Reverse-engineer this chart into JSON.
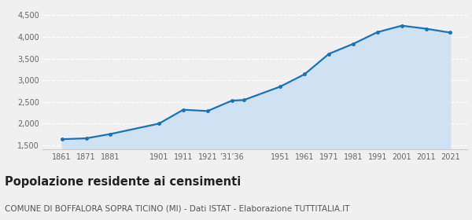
{
  "years": [
    1861,
    1871,
    1881,
    1901,
    1911,
    1921,
    1931,
    1936,
    1951,
    1961,
    1971,
    1981,
    1991,
    2001,
    2011,
    2021
  ],
  "population": [
    1640,
    1660,
    1760,
    2000,
    2320,
    2290,
    2530,
    2545,
    2855,
    3140,
    3610,
    3840,
    4110,
    4260,
    4190,
    4100
  ],
  "x_tick_positions": [
    1861,
    1871,
    1881,
    1901,
    1911,
    1921,
    1931,
    1951,
    1961,
    1971,
    1981,
    1991,
    2001,
    2011,
    2021
  ],
  "x_tick_labels": [
    "1861",
    "1871",
    "1881",
    "1901",
    "1911",
    "1921",
    "’31’36",
    "1951",
    "1961",
    "1971",
    "1981",
    "1991",
    "2001",
    "2011",
    "2021"
  ],
  "ylim": [
    1400,
    4700
  ],
  "yticks": [
    1500,
    2000,
    2500,
    3000,
    3500,
    4000,
    4500
  ],
  "ytick_labels": [
    "1,500",
    "2,000",
    "2,500",
    "3,000",
    "3,500",
    "4,000",
    "4,500"
  ],
  "line_color": "#1a72b8",
  "fill_color": "#cfe2f3",
  "marker_color": "#1a72b8",
  "title": "Popolazione residente ai censimenti",
  "subtitle": "COMUNE DI BOFFALORA SOPRA TICINO (MI) - Dati ISTAT - Elaborazione TUTTITALIA.IT",
  "background_color": "#f0f0f0",
  "grid_color": "#ffffff",
  "title_fontsize": 10.5,
  "subtitle_fontsize": 7.5,
  "xlim_left": 1853,
  "xlim_right": 2028
}
